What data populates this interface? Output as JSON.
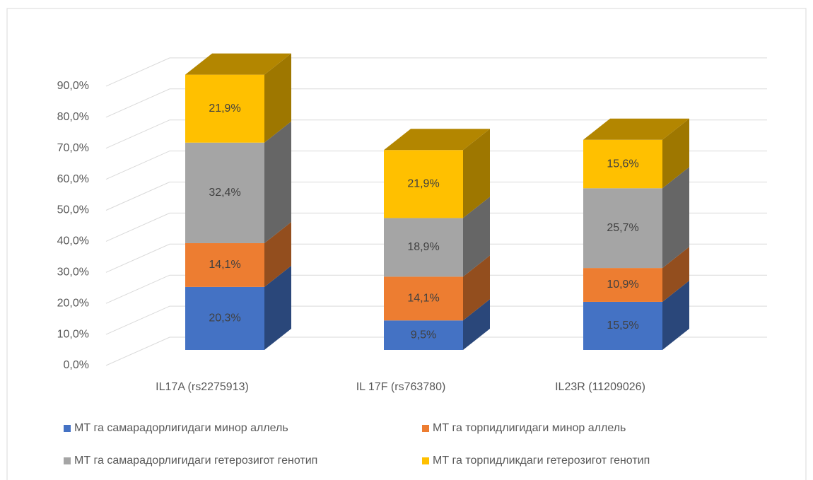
{
  "chart_data": {
    "type": "bar3d_stacked",
    "categories": [
      "IL17A (rs2275913)",
      "IL 17F (rs763780)",
      "IL23R (11209026)"
    ],
    "series": [
      {
        "name": "МТ га самарадорлигидаги минор аллель",
        "color": "#4472c4",
        "values": [
          20.3,
          9.5,
          15.5
        ],
        "value_labels": [
          "20,3%",
          "9,5%",
          "15,5%"
        ]
      },
      {
        "name": "МТ га торпидлигидаги минор аллель",
        "color": "#ed7d31",
        "values": [
          14.1,
          14.1,
          10.9
        ],
        "value_labels": [
          "14,1%",
          "14,1%",
          "10,9%"
        ]
      },
      {
        "name": "МТ га самарадорлигидаги гетерозигот генотип",
        "color": "#a5a5a5",
        "values": [
          32.4,
          18.9,
          25.7
        ],
        "value_labels": [
          "32,4%",
          "18,9%",
          "25,7%"
        ]
      },
      {
        "name": "МТ га торпидликдаги гетерозигот генотип",
        "color": "#ffc000",
        "values": [
          21.9,
          21.9,
          15.6
        ],
        "value_labels": [
          "21,9%",
          "21,9%",
          "15,6%"
        ]
      }
    ],
    "ylim": [
      0,
      100
    ],
    "yticks": [
      {
        "value": 0,
        "label": "0,0%"
      },
      {
        "value": 10,
        "label": "10,0%"
      },
      {
        "value": 20,
        "label": "20,0%"
      },
      {
        "value": 30,
        "label": "30,0%"
      },
      {
        "value": 40,
        "label": "40,0%"
      },
      {
        "value": 50,
        "label": "50,0%"
      },
      {
        "value": 60,
        "label": "60,0%"
      },
      {
        "value": 70,
        "label": "70,0%"
      },
      {
        "value": 80,
        "label": "80,0%"
      },
      {
        "value": 90,
        "label": "90,0%"
      }
    ],
    "grid": true,
    "legend": "bottom"
  }
}
